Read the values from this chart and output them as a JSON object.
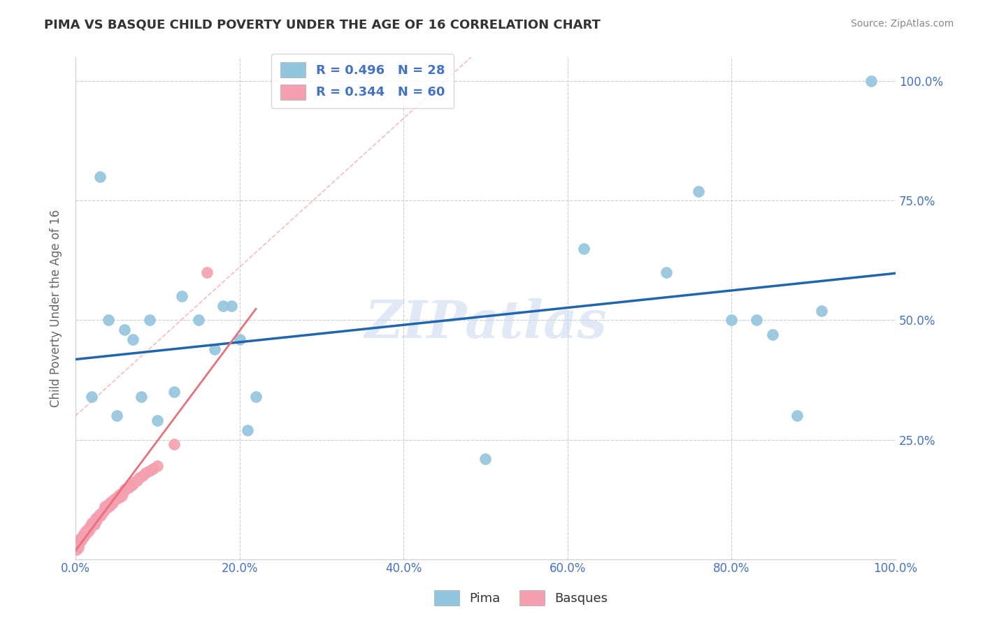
{
  "title": "PIMA VS BASQUE CHILD POVERTY UNDER THE AGE OF 16 CORRELATION CHART",
  "source": "Source: ZipAtlas.com",
  "ylabel": "Child Poverty Under the Age of 16",
  "pima_R": 0.496,
  "pima_N": 28,
  "basque_R": 0.344,
  "basque_N": 60,
  "pima_color": "#92C5DE",
  "basque_color": "#F4A0B0",
  "pima_line_color": "#2166AC",
  "basque_line_color": "#E8707A",
  "watermark_color": "#C8D8EE",
  "pima_x": [
    0.02,
    0.03,
    0.04,
    0.05,
    0.06,
    0.07,
    0.08,
    0.09,
    0.1,
    0.12,
    0.13,
    0.15,
    0.17,
    0.18,
    0.19,
    0.2,
    0.21,
    0.22,
    0.5,
    0.62,
    0.72,
    0.76,
    0.8,
    0.83,
    0.85,
    0.88,
    0.91,
    0.97
  ],
  "pima_y": [
    0.34,
    0.8,
    0.5,
    0.3,
    0.48,
    0.46,
    0.34,
    0.5,
    0.29,
    0.35,
    0.55,
    0.5,
    0.44,
    0.53,
    0.53,
    0.46,
    0.27,
    0.34,
    0.21,
    0.65,
    0.6,
    0.77,
    0.5,
    0.5,
    0.47,
    0.3,
    0.52,
    1.0
  ],
  "basque_x": [
    0.001,
    0.002,
    0.003,
    0.004,
    0.005,
    0.006,
    0.007,
    0.008,
    0.009,
    0.01,
    0.011,
    0.012,
    0.013,
    0.014,
    0.015,
    0.016,
    0.017,
    0.018,
    0.019,
    0.02,
    0.021,
    0.022,
    0.023,
    0.024,
    0.025,
    0.026,
    0.027,
    0.028,
    0.03,
    0.031,
    0.032,
    0.034,
    0.035,
    0.036,
    0.038,
    0.04,
    0.042,
    0.043,
    0.045,
    0.047,
    0.05,
    0.052,
    0.054,
    0.056,
    0.058,
    0.06,
    0.062,
    0.065,
    0.068,
    0.07,
    0.072,
    0.075,
    0.078,
    0.082,
    0.085,
    0.09,
    0.095,
    0.1,
    0.12,
    0.16
  ],
  "basque_y": [
    0.02,
    0.03,
    0.025,
    0.035,
    0.04,
    0.038,
    0.045,
    0.042,
    0.05,
    0.048,
    0.055,
    0.052,
    0.06,
    0.058,
    0.058,
    0.065,
    0.062,
    0.068,
    0.07,
    0.075,
    0.073,
    0.078,
    0.072,
    0.08,
    0.085,
    0.082,
    0.088,
    0.09,
    0.095,
    0.092,
    0.098,
    0.1,
    0.105,
    0.11,
    0.108,
    0.115,
    0.112,
    0.12,
    0.118,
    0.125,
    0.13,
    0.128,
    0.135,
    0.132,
    0.14,
    0.145,
    0.148,
    0.15,
    0.155,
    0.158,
    0.162,
    0.165,
    0.17,
    0.175,
    0.18,
    0.185,
    0.19,
    0.195,
    0.24,
    0.6
  ],
  "xlim": [
    0.0,
    1.0
  ],
  "ylim": [
    0.0,
    1.05
  ],
  "yticks": [
    0.0,
    0.25,
    0.5,
    0.75,
    1.0
  ],
  "xticks": [
    0.0,
    0.2,
    0.4,
    0.6,
    0.8,
    1.0
  ],
  "xtick_labels": [
    "0.0%",
    "20.0%",
    "40.0%",
    "60.0%",
    "80.0%",
    "100.0%"
  ],
  "ytick_labels": [
    "",
    "25.0%",
    "50.0%",
    "75.0%",
    "100.0%"
  ],
  "background_color": "#FFFFFF",
  "grid_color": "#CCCCCC",
  "axis_color": "#CCCCCC",
  "title_color": "#333333",
  "tick_label_color": "#4472C4"
}
